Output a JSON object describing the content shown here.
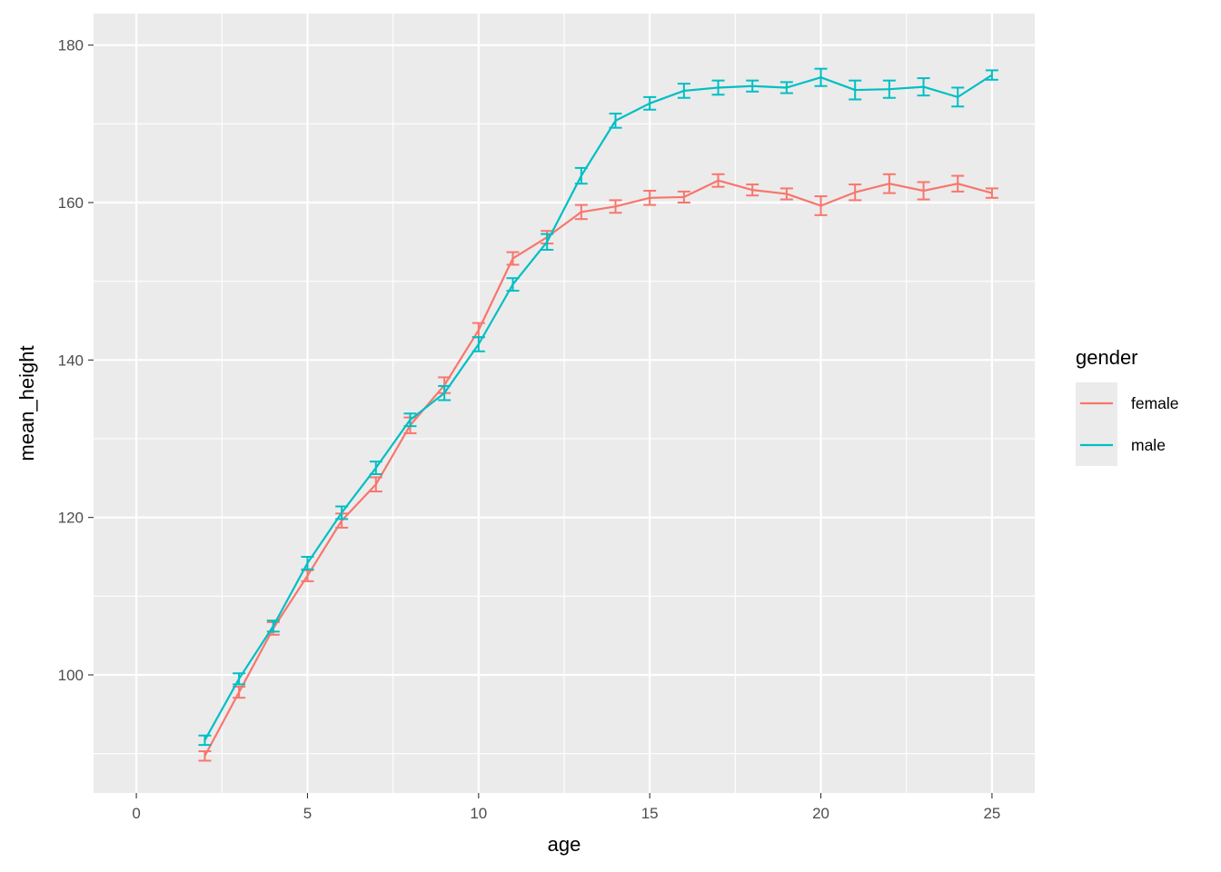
{
  "chart_data": {
    "type": "line",
    "xlabel": "age",
    "ylabel": "mean_height",
    "xlim": [
      -1.25,
      26.25
    ],
    "ylim": [
      85,
      184
    ],
    "x_ticks": [
      0,
      5,
      10,
      15,
      20,
      25
    ],
    "y_ticks": [
      100,
      120,
      140,
      160,
      180
    ],
    "grid": true,
    "legend": {
      "title": "gender",
      "position": "right"
    },
    "x": [
      2,
      3,
      4,
      5,
      6,
      7,
      8,
      9,
      10,
      11,
      12,
      13,
      14,
      15,
      16,
      17,
      18,
      19,
      20,
      21,
      22,
      23,
      24,
      25
    ],
    "series": [
      {
        "name": "female",
        "color": "#F8766D",
        "values": [
          89.7,
          97.8,
          105.9,
          112.6,
          119.6,
          124.2,
          131.7,
          136.8,
          143.8,
          152.9,
          155.6,
          158.8,
          159.5,
          160.6,
          160.7,
          162.8,
          161.6,
          161.1,
          159.6,
          161.3,
          162.4,
          161.5,
          162.4,
          161.2
        ],
        "errors": [
          0.6,
          0.7,
          0.8,
          0.7,
          0.9,
          0.9,
          1.0,
          1.0,
          0.9,
          0.8,
          0.8,
          0.9,
          0.8,
          0.9,
          0.7,
          0.8,
          0.7,
          0.7,
          1.2,
          1.0,
          1.2,
          1.1,
          1.0,
          0.6
        ]
      },
      {
        "name": "male",
        "color": "#00BFC4",
        "values": [
          91.7,
          99.5,
          106.2,
          114.2,
          120.6,
          126.3,
          132.4,
          135.8,
          142.0,
          149.6,
          155.0,
          163.4,
          170.4,
          172.6,
          174.2,
          174.6,
          174.8,
          174.6,
          175.9,
          174.3,
          174.4,
          174.7,
          173.4,
          176.2
        ],
        "errors": [
          0.6,
          0.7,
          0.7,
          0.8,
          0.8,
          0.8,
          0.8,
          0.9,
          0.9,
          0.8,
          1.0,
          1.0,
          0.9,
          0.8,
          0.9,
          0.9,
          0.7,
          0.7,
          1.1,
          1.2,
          1.1,
          1.1,
          1.2,
          0.6
        ]
      }
    ]
  }
}
